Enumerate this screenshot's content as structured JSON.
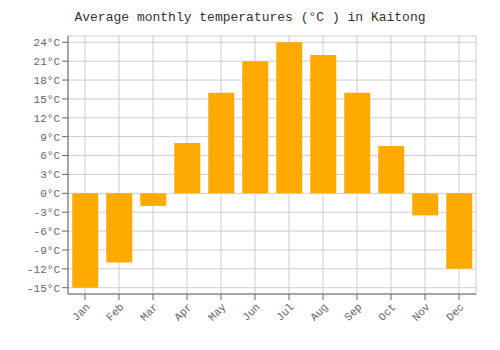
{
  "chart_data": {
    "type": "bar",
    "title": "Average monthly temperatures (°C ) in Kaitong",
    "categories": [
      "Jan",
      "Feb",
      "Mar",
      "Apr",
      "May",
      "Jun",
      "Jul",
      "Aug",
      "Sep",
      "Oct",
      "Nov",
      "Dec"
    ],
    "values": [
      -15,
      -11,
      -2,
      8,
      16,
      21,
      24,
      22,
      16,
      7.5,
      -3.5,
      -12
    ],
    "color": "#FFAA00",
    "ylim": [
      -16,
      25
    ],
    "yticks": [
      {
        "value": -15,
        "label": "-15°C"
      },
      {
        "value": -12,
        "label": "-12°C"
      },
      {
        "value": -9,
        "label": "-9°C"
      },
      {
        "value": -6,
        "label": "-6°C"
      },
      {
        "value": -3,
        "label": "-3°C"
      },
      {
        "value": 0,
        "label": "0°C"
      },
      {
        "value": 3,
        "label": "3°C"
      },
      {
        "value": 6,
        "label": "6°C"
      },
      {
        "value": 9,
        "label": "9°C"
      },
      {
        "value": 12,
        "label": "12°C"
      },
      {
        "value": 15,
        "label": "15°C"
      },
      {
        "value": 18,
        "label": "18°C"
      },
      {
        "value": 21,
        "label": "21°C"
      },
      {
        "value": 24,
        "label": "24°C"
      }
    ],
    "grid": true
  }
}
